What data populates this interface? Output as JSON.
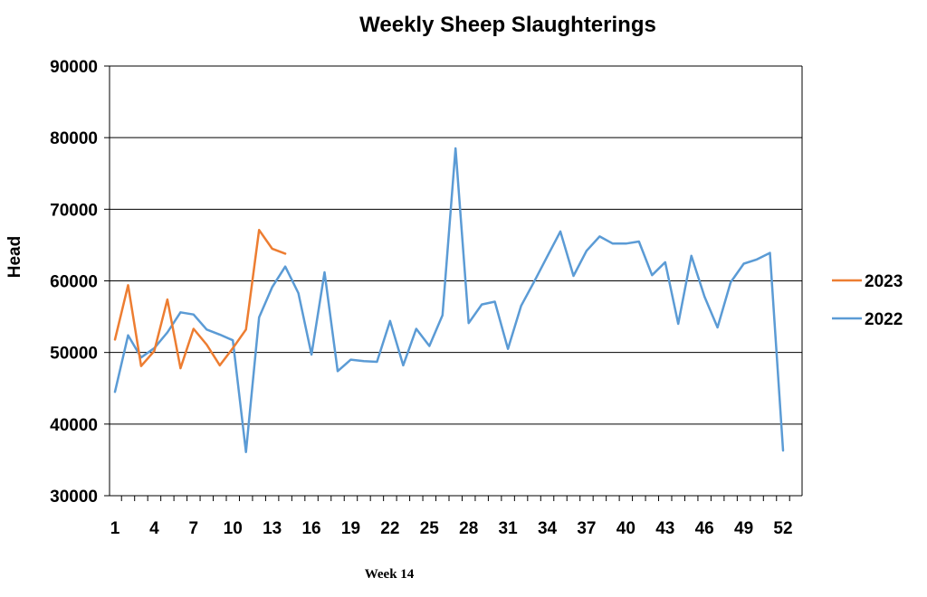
{
  "chart_data": {
    "type": "line",
    "title": "Weekly Sheep Slaughterings",
    "ylabel": "Head",
    "xlabel": "",
    "ylim": [
      30000,
      90000
    ],
    "yticks": [
      30000,
      40000,
      50000,
      60000,
      70000,
      80000,
      90000
    ],
    "xlim": [
      1,
      52
    ],
    "xticks": [
      1,
      4,
      7,
      10,
      13,
      16,
      19,
      22,
      25,
      28,
      31,
      34,
      37,
      40,
      43,
      46,
      49,
      52
    ],
    "grid": "horizontal",
    "legend_position": "right",
    "series": [
      {
        "name": "2023",
        "color": "#ed7d31",
        "x": [
          1,
          2,
          3,
          4,
          5,
          6,
          7,
          8,
          9,
          10,
          11,
          12,
          13,
          14
        ],
        "values": [
          51800,
          59400,
          48100,
          50200,
          57400,
          47800,
          53300,
          51100,
          48200,
          50600,
          53200,
          67100,
          64500,
          63800
        ]
      },
      {
        "name": "2022",
        "color": "#5b9bd5",
        "x": [
          1,
          2,
          3,
          4,
          5,
          6,
          7,
          8,
          9,
          10,
          11,
          12,
          13,
          14,
          15,
          16,
          17,
          18,
          19,
          20,
          21,
          22,
          23,
          24,
          25,
          26,
          27,
          28,
          29,
          30,
          31,
          32,
          33,
          34,
          35,
          36,
          37,
          38,
          39,
          40,
          41,
          42,
          43,
          44,
          45,
          46,
          47,
          48,
          49,
          50,
          51,
          52
        ],
        "values": [
          44500,
          52400,
          49300,
          50600,
          52800,
          55600,
          55300,
          53200,
          52500,
          51700,
          36100,
          54900,
          59100,
          62000,
          58300,
          49700,
          61200,
          47400,
          49000,
          48800,
          48700,
          54400,
          48200,
          53300,
          50900,
          55200,
          78500,
          54100,
          56700,
          57100,
          50500,
          56500,
          59900,
          63400,
          66900,
          60700,
          64200,
          66200,
          65200,
          65200,
          65500,
          60800,
          62600,
          54000,
          63500,
          57800,
          53500,
          59800,
          62400,
          63000,
          63900,
          36300
        ]
      }
    ]
  },
  "footnote": "Week 14"
}
